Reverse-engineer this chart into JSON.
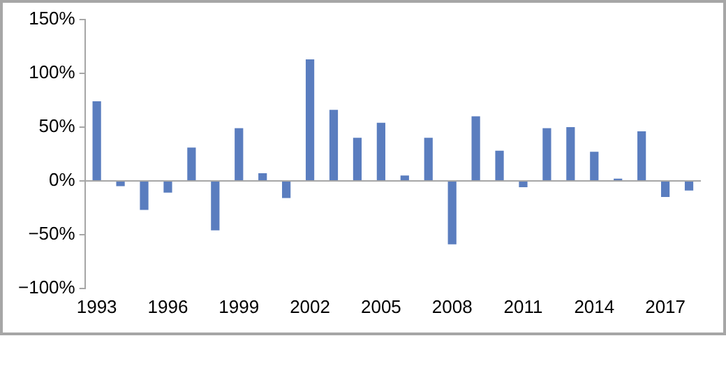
{
  "chart_data": {
    "type": "bar",
    "categories": [
      "1993",
      null,
      null,
      "1996",
      null,
      null,
      "1999",
      null,
      null,
      "2002",
      null,
      null,
      "2005",
      null,
      null,
      "2008",
      null,
      null,
      "2011",
      null,
      null,
      "2014",
      null,
      null,
      "2017",
      null
    ],
    "values": [
      74,
      -5,
      -27,
      -11,
      31,
      -46,
      49,
      7,
      -16,
      113,
      66,
      40,
      54,
      5,
      40,
      -59,
      60,
      28,
      -6,
      49,
      50,
      27,
      2,
      46,
      -15,
      -9
    ],
    "color": "#5a7dbf",
    "ylim": [
      -100,
      150
    ],
    "yticks": [
      {
        "value": -100,
        "label": "−100%"
      },
      {
        "value": -50,
        "label": "−50%"
      },
      {
        "value": 0,
        "label": "0%"
      },
      {
        "value": 50,
        "label": "50%"
      },
      {
        "value": 100,
        "label": "100%"
      },
      {
        "value": 150,
        "label": "150%"
      }
    ],
    "ref_lines": [
      {
        "axis": "y",
        "value": 0,
        "color": "#a6a6a6"
      }
    ],
    "grid": false,
    "legend": false
  }
}
